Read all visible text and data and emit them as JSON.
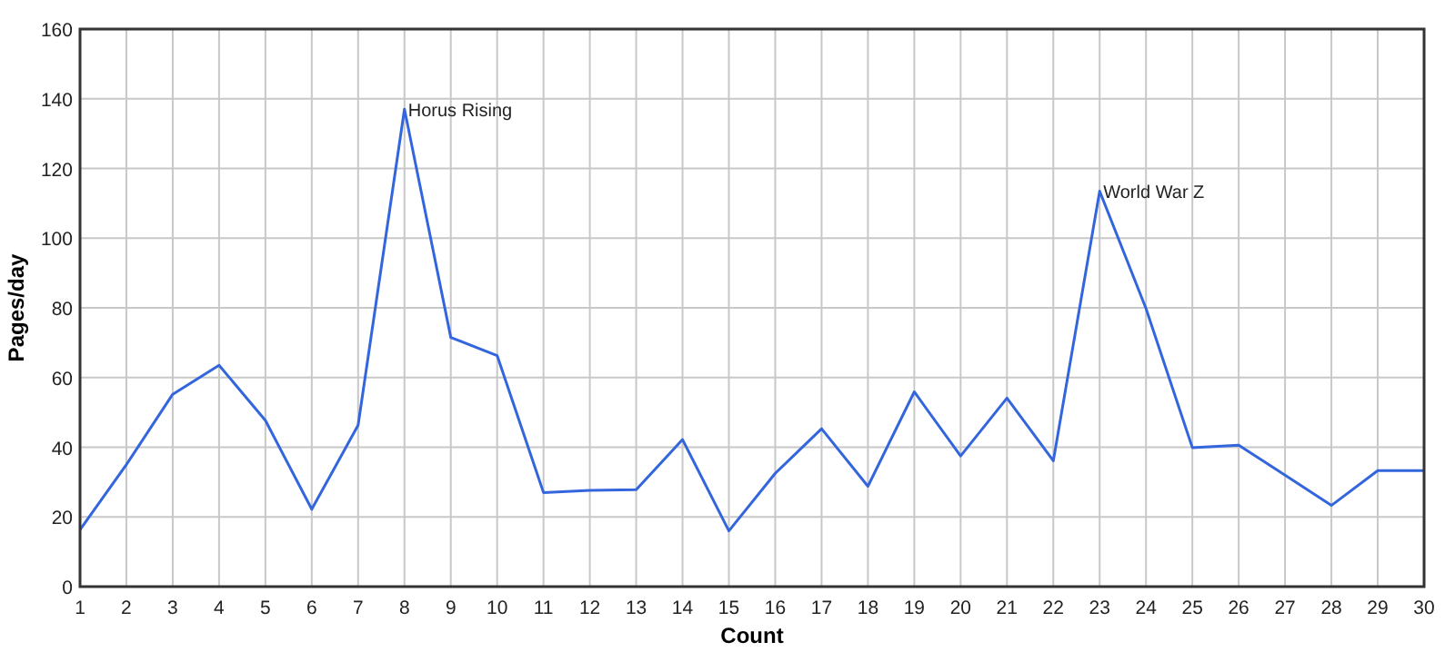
{
  "chart_data": {
    "type": "line",
    "xlabel": "Count",
    "ylabel": "Pages/day",
    "x": [
      1,
      2,
      3,
      4,
      5,
      6,
      7,
      8,
      9,
      10,
      11,
      12,
      13,
      14,
      15,
      16,
      17,
      18,
      19,
      20,
      21,
      22,
      23,
      24,
      25,
      26,
      27,
      28,
      29,
      30
    ],
    "series": [
      {
        "color": "#3366dd",
        "values": [
          16.3,
          35,
          55.2,
          63.5,
          47.7,
          22.2,
          46.3,
          137,
          71.5,
          66.3,
          27,
          27.6,
          27.8,
          42.2,
          16,
          32.5,
          45.3,
          28.8,
          55.9,
          37.5,
          54.1,
          36.1,
          113.5,
          79.8,
          39.9,
          40.6,
          32,
          23.3,
          33.3,
          33.3
        ]
      }
    ],
    "xlim": [
      1,
      30
    ],
    "xticks": [
      1,
      2,
      3,
      4,
      5,
      6,
      7,
      8,
      9,
      10,
      11,
      12,
      13,
      14,
      15,
      16,
      17,
      18,
      19,
      20,
      21,
      22,
      23,
      24,
      25,
      26,
      27,
      28,
      29,
      30
    ],
    "ylim": [
      0,
      160
    ],
    "yticks": [
      0,
      20,
      40,
      60,
      80,
      100,
      120,
      140,
      160
    ],
    "annotations": [
      {
        "text": "Horus Rising",
        "x": 8,
        "y": 137
      },
      {
        "text": "World War Z",
        "x": 23,
        "y": 113.5
      }
    ],
    "grid": true,
    "marker": "none",
    "line_style": "solid"
  }
}
